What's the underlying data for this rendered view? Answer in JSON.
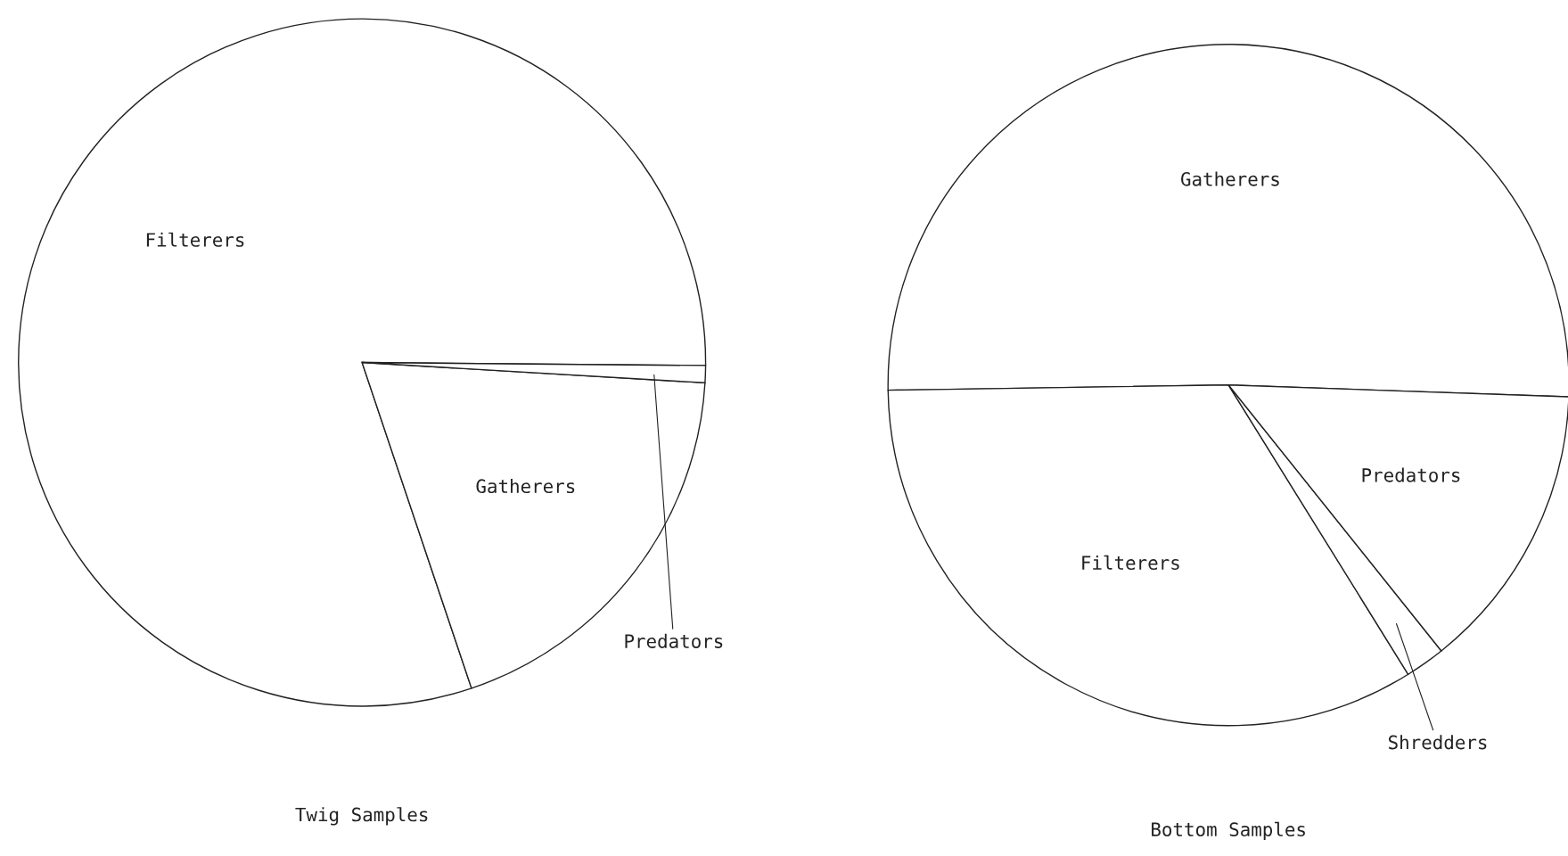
{
  "chart_data": [
    {
      "type": "pie",
      "title": "Twig Samples",
      "categories": [
        "Filterers",
        "Gatherers",
        "Predators"
      ],
      "values": [
        80.3,
        18.9,
        0.8
      ],
      "colors": [
        "#ffffff",
        "#ffffff",
        "#ffffff"
      ]
    },
    {
      "type": "pie",
      "title": "Bottom Samples",
      "categories": [
        "Gatherers",
        "Filterers",
        "Shredders",
        "Predators"
      ],
      "values": [
        50.8,
        33.6,
        1.9,
        13.7
      ],
      "colors": [
        "#ffffff",
        "#ffffff",
        "#ffffff",
        "#ffffff"
      ]
    }
  ]
}
